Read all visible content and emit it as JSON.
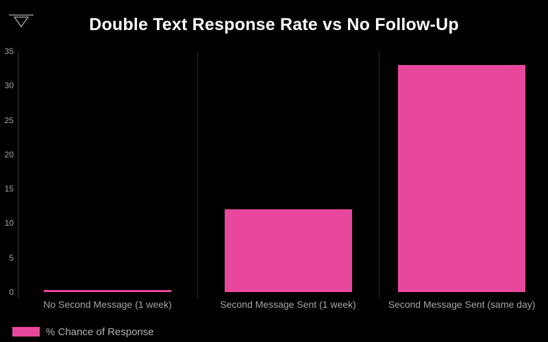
{
  "chart_data": {
    "type": "bar",
    "title": "Double Text Response Rate vs No Follow-Up",
    "categories": [
      "No Second Message (1 week)",
      "Second Message Sent (1 week)",
      "Second Message Sent (same day)"
    ],
    "values": [
      0.3,
      12,
      33
    ],
    "series_name": "% Chance of Response",
    "ylim": [
      0,
      35
    ],
    "ytick_step": 5,
    "yticks": [
      0,
      5,
      10,
      15,
      20,
      25,
      30,
      35
    ],
    "xlabel": "",
    "ylabel": "",
    "grid": "vertical category separators only",
    "legend_position": "bottom-left"
  },
  "legend": {
    "label": "% Chance of Response"
  },
  "icons": {
    "logo": "triangle-with-line-icon"
  },
  "colors": {
    "background": "#000000",
    "bar": "#e8489b",
    "title_text": "#ffffff",
    "axis_line": "#3a3a3a",
    "gridline": "#2e2e2e",
    "tick_text": "#a6a6a6",
    "xlabel_text": "#a6a6a6",
    "legend_text": "#b3b3b3",
    "logo": "#b0b0b0"
  }
}
